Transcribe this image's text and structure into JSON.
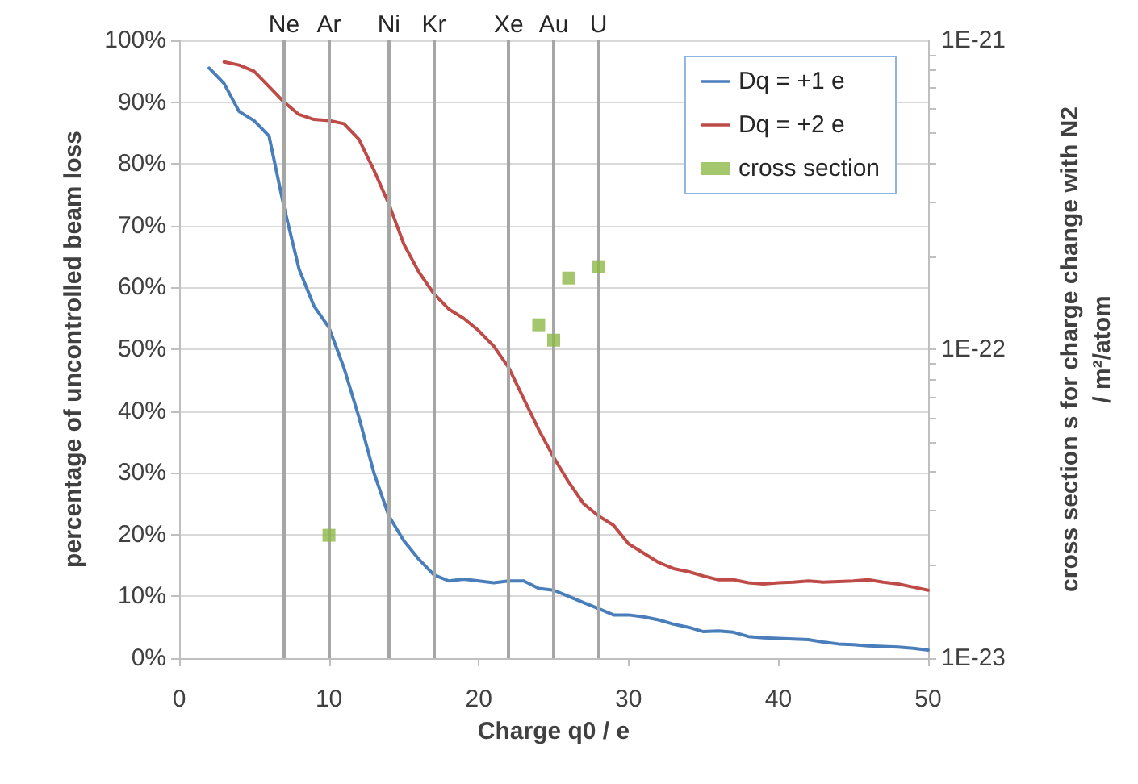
{
  "chart_data": {
    "type": "line",
    "xlabel": "Charge q0 / e",
    "ylabel": "percentage of uncontrolled beam loss",
    "y2label": "cross section s for charge change with N2 / m²/atom",
    "xlim": [
      0,
      50
    ],
    "xticks": [
      0,
      10,
      20,
      30,
      40,
      50
    ],
    "ylim": [
      0,
      100
    ],
    "yticks": [
      {
        "value": 0,
        "label": "0%"
      },
      {
        "value": 10,
        "label": "10%"
      },
      {
        "value": 20,
        "label": "20%"
      },
      {
        "value": 30,
        "label": "30%"
      },
      {
        "value": 40,
        "label": "40%"
      },
      {
        "value": 50,
        "label": "50%"
      },
      {
        "value": 60,
        "label": "60%"
      },
      {
        "value": 70,
        "label": "70%"
      },
      {
        "value": 80,
        "label": "80%"
      },
      {
        "value": 90,
        "label": "90%"
      },
      {
        "value": 100,
        "label": "100%"
      }
    ],
    "y2lim": [
      1e-23,
      1e-21
    ],
    "y2ticks": [
      {
        "value": 1e-23,
        "label": "1E-23"
      },
      {
        "value": 1e-22,
        "label": "1E-22"
      },
      {
        "value": 1e-21,
        "label": "1E-21"
      }
    ],
    "log": "y2",
    "grid": "y",
    "legend": "top right",
    "ref_lines": [
      {
        "axis": "x",
        "value": 7,
        "label": "Ne",
        "color": "#a6a6a6"
      },
      {
        "axis": "x",
        "value": 10,
        "label": "Ar",
        "color": "#a6a6a6"
      },
      {
        "axis": "x",
        "value": 14,
        "label": "Ni",
        "color": "#a6a6a6"
      },
      {
        "axis": "x",
        "value": 17,
        "label": "Kr",
        "color": "#a6a6a6"
      },
      {
        "axis": "x",
        "value": 22,
        "label": "Xe",
        "color": "#a6a6a6"
      },
      {
        "axis": "x",
        "value": 25,
        "label": "Au",
        "color": "#a6a6a6"
      },
      {
        "axis": "x",
        "value": 28,
        "label": "U",
        "color": "#a6a6a6"
      }
    ],
    "series": [
      {
        "name": "Dq = +1 e",
        "type": "line",
        "marker": "none",
        "color": "#4a7ebb",
        "x": [
          2,
          3,
          4,
          5,
          6,
          7,
          8,
          9,
          10,
          11,
          12,
          13,
          14,
          15,
          16,
          17,
          18,
          19,
          20,
          21,
          22,
          23,
          24,
          25,
          26,
          27,
          28,
          29,
          30,
          31,
          32,
          33,
          34,
          35,
          36,
          37,
          38,
          39,
          40,
          41,
          42,
          43,
          44,
          45,
          46,
          47,
          48,
          49,
          50
        ],
        "values": [
          95.5,
          93,
          88.5,
          87,
          84.5,
          73,
          63,
          57,
          53.5,
          47,
          39,
          30,
          23,
          19,
          16,
          13.5,
          12.5,
          12.8,
          12.5,
          12.2,
          12.5,
          12.5,
          11.3,
          11,
          10,
          9,
          8,
          7,
          7,
          6.7,
          6.2,
          5.5,
          5,
          4.3,
          4.4,
          4.2,
          3.5,
          3.3,
          3.2,
          3.1,
          3,
          2.6,
          2.3,
          2.2,
          2,
          1.9,
          1.8,
          1.6,
          1.3
        ]
      },
      {
        "name": "Dq = +2 e",
        "type": "line",
        "marker": "none",
        "color": "#be4b48",
        "x": [
          3,
          4,
          5,
          6,
          7,
          8,
          9,
          10,
          11,
          12,
          13,
          14,
          15,
          16,
          17,
          18,
          19,
          20,
          21,
          22,
          23,
          24,
          25,
          26,
          27,
          28,
          29,
          30,
          31,
          32,
          33,
          34,
          35,
          36,
          37,
          38,
          39,
          40,
          41,
          42,
          43,
          44,
          45,
          46,
          47,
          48,
          49,
          50
        ],
        "values": [
          96.5,
          96,
          95,
          92.5,
          90,
          88,
          87.2,
          87,
          86.5,
          84,
          79,
          73.5,
          67,
          62.5,
          59,
          56.5,
          55,
          53,
          50.5,
          47,
          42,
          37,
          32.5,
          28.5,
          25,
          23,
          21.5,
          18.5,
          17,
          15.5,
          14.5,
          14,
          13.3,
          12.7,
          12.7,
          12.2,
          12,
          12.2,
          12.3,
          12.5,
          12.3,
          12.4,
          12.5,
          12.7,
          12.3,
          12,
          11.5,
          11
        ]
      },
      {
        "name": "cross section",
        "type": "scatter",
        "marker": "square",
        "axis": "y2",
        "color": "#8db849",
        "x": [
          10,
          24,
          25,
          26,
          28
        ],
        "values": [
          2.5e-23,
          1.2e-22,
          1.07e-22,
          1.7e-22,
          1.85e-22
        ]
      }
    ]
  }
}
